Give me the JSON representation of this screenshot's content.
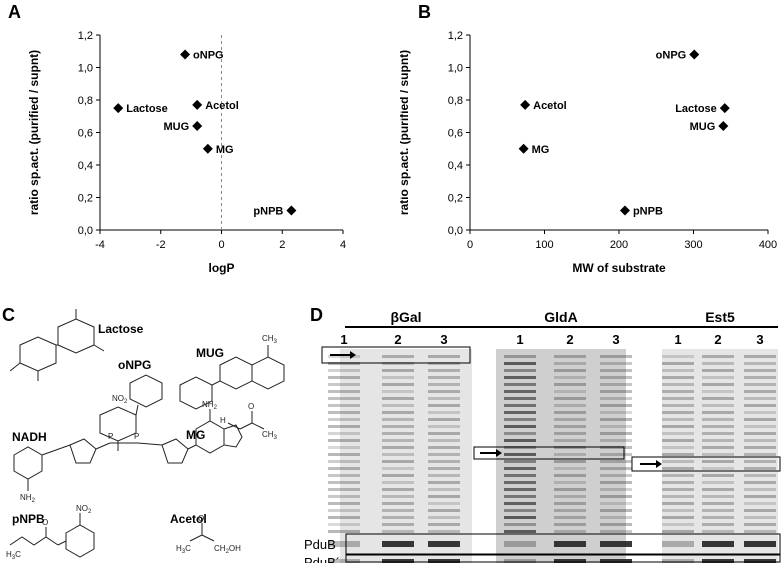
{
  "panels": {
    "A": "A",
    "B": "B",
    "C": "C",
    "D": "D"
  },
  "chart_data": [
    {
      "type": "scatter",
      "xlabel": "logP",
      "ylabel": "ratio sp.act. (purified / supnt)",
      "xlim": [
        -4,
        4
      ],
      "ylim": [
        0,
        1.2
      ],
      "xticks": [
        -4,
        -2,
        0,
        2,
        4
      ],
      "yticks": [
        "0,0",
        "0,2",
        "0,4",
        "0,6",
        "0,8",
        "1,0",
        "1,2"
      ],
      "reference_line_x": 0,
      "points": [
        {
          "label": "oNPG",
          "x": -1.2,
          "y": 1.08
        },
        {
          "label": "Lactose",
          "x": -3.4,
          "y": 0.75
        },
        {
          "label": "Acetol",
          "x": -0.8,
          "y": 0.77
        },
        {
          "label": "MUG",
          "x": -0.8,
          "y": 0.64
        },
        {
          "label": "MG",
          "x": -0.45,
          "y": 0.5
        },
        {
          "label": "pNPB",
          "x": 2.3,
          "y": 0.12
        }
      ]
    },
    {
      "type": "scatter",
      "xlabel": "MW of substrate",
      "ylabel": "ratio sp.act. (purified / supnt)",
      "xlim": [
        0,
        400
      ],
      "ylim": [
        0,
        1.2
      ],
      "xticks": [
        0,
        100,
        200,
        300,
        400
      ],
      "yticks": [
        "0,0",
        "0,2",
        "0,4",
        "0,6",
        "0,8",
        "1,0",
        "1,2"
      ],
      "points": [
        {
          "label": "oNPG",
          "x": 301,
          "y": 1.08
        },
        {
          "label": "Acetol",
          "x": 74,
          "y": 0.77
        },
        {
          "label": "Lactose",
          "x": 342,
          "y": 0.75
        },
        {
          "label": "MUG",
          "x": 340,
          "y": 0.64
        },
        {
          "label": "MG",
          "x": 72,
          "y": 0.5
        },
        {
          "label": "pNPB",
          "x": 208,
          "y": 0.12
        }
      ]
    }
  ],
  "structures": {
    "lactose": "Lactose",
    "onpg": "oNPG",
    "mug": "MUG",
    "mg": "MG",
    "nadh": "NADH",
    "pnpb": "pNPB",
    "acetol": "Acetol",
    "no2": "NO",
    "no2_sub": "2",
    "ch3": "CH",
    "ch3_sub": "3",
    "h": "H",
    "o": "O",
    "oh": "OH",
    "nh2": "NH",
    "nh2_sub": "2",
    "n": "N",
    "p": "P",
    "h3c": "H",
    "h3c_sub": "3",
    "h3c_c": "C",
    "ch2oh": "CH",
    "ch2oh_sub": "2",
    "ch2oh_oh": "OH",
    "acetol_ch3": "H",
    "acetol_ch3_sub": "3",
    "acetol_ch3_c": "C"
  },
  "gel": {
    "groups": [
      {
        "name": "βGal",
        "lanes": [
          "1",
          "2",
          "3"
        ]
      },
      {
        "name": "GldA",
        "lanes": [
          "1",
          "2",
          "3"
        ]
      },
      {
        "name": "Est5",
        "lanes": [
          "1",
          "2",
          "3"
        ]
      }
    ],
    "row_labels": [
      "PduB",
      "PduB´"
    ]
  }
}
